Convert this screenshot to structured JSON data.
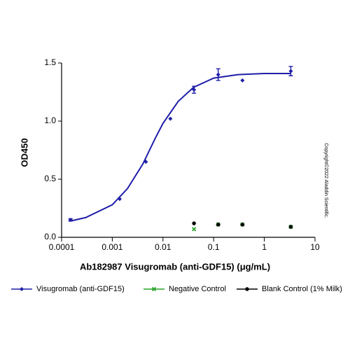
{
  "chart_data": {
    "type": "scatter",
    "x_label": "Ab182987 Visugromab (anti-GDF15) (μg/mL)",
    "y_label": "OD450",
    "annotation": "Copyright©2022 Aladdin Scientific.",
    "xscale": "log",
    "xlim": [
      0.0001,
      10
    ],
    "xticks": [
      0.0001,
      0.001,
      0.01,
      0.1,
      1,
      10
    ],
    "ylim": [
      0,
      1.5
    ],
    "yticks": [
      {
        "value": 0,
        "label": "0.0"
      },
      {
        "value": 0.5,
        "label": "0.5"
      },
      {
        "value": 1,
        "label": "1.0"
      },
      {
        "value": 1.5,
        "label": "1.5"
      }
    ],
    "series": [
      {
        "name": "Visugromab (anti-GDF15)",
        "color": "#1f1fa8",
        "marker": "diamond",
        "x": [
          0.00015,
          0.0014,
          0.0046,
          0.014,
          0.041,
          0.123,
          0.37,
          3.33
        ],
        "values": [
          0.15,
          0.33,
          0.65,
          1.02,
          1.27,
          1.4,
          1.35,
          1.43
        ],
        "errors": [
          0.01,
          null,
          null,
          null,
          0.03,
          0.05,
          null,
          0.04
        ],
        "fit_x": [
          0.00015,
          0.0003,
          0.001,
          0.002,
          0.004,
          0.007,
          0.01,
          0.02,
          0.04,
          0.1,
          0.3,
          1,
          3.33
        ],
        "fit_values": [
          0.14,
          0.17,
          0.28,
          0.42,
          0.63,
          0.85,
          0.98,
          1.17,
          1.29,
          1.37,
          1.4,
          1.41,
          1.41
        ]
      },
      {
        "name": "Negative Control",
        "color": "#2aa52a",
        "marker": "x",
        "x": [
          0.041,
          0.123,
          0.37,
          3.33
        ],
        "values": [
          0.07,
          0.11,
          0.11,
          0.09
        ]
      },
      {
        "name": "Blank Control (1% Milk)",
        "color": "#000000",
        "marker": "star",
        "x": [
          0.041,
          0.123,
          0.37,
          3.33
        ],
        "values": [
          0.12,
          0.11,
          0.11,
          0.09
        ]
      }
    ]
  }
}
